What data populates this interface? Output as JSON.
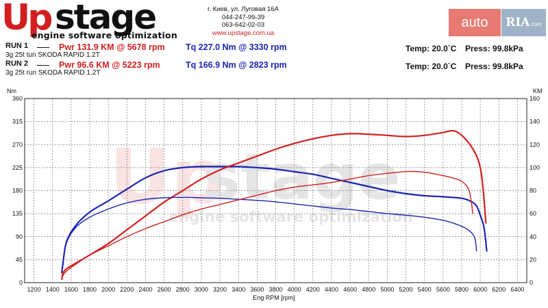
{
  "logo": {
    "brand_a": "Up",
    "brand_b": "stage",
    "tagline": "engine software optimization"
  },
  "contact": {
    "address": "г. Киев, ул. Луговая 16А",
    "phone1": "044-247-99-39",
    "phone2": "063-642-02-03",
    "website": "www.upstage.com.ua"
  },
  "watermark": {
    "auto": "auto",
    "ria": "RIA",
    "ria_suffix": ".com"
  },
  "runs": [
    {
      "label": "RUN 1",
      "car": "3g 25t tun SKODA RAPID 1.2T",
      "power": "Pwr 131.9 KM @ 5678 rpm",
      "torque": "Tq 227.0 Nm @ 3330 rpm",
      "temp": "Temp: 20.0`C",
      "press": "Press: 99.8kPa"
    },
    {
      "label": "RUN 2",
      "car": "3g 25t run SKODA RAPID 1.2T",
      "power": "Pwr 96.6 KM @ 5223 rpm",
      "torque": "Tq 166.9 Nm @ 2823 rpm",
      "temp": "Temp: 20.0`C",
      "press": "Press: 99.8kPa"
    }
  ],
  "chart_data": {
    "type": "line",
    "xlabel": "Eng RPM [rpm]",
    "ylabel_left": "Nm",
    "ylabel_right": "KM",
    "xlim": [
      1100,
      6500
    ],
    "ylim_left": [
      0,
      360
    ],
    "ylim_right": [
      0,
      160
    ],
    "x_ticks": [
      1200,
      1400,
      1600,
      1800,
      2000,
      2200,
      2400,
      2600,
      2800,
      3000,
      3200,
      3400,
      3600,
      3800,
      4000,
      4200,
      4400,
      4600,
      4800,
      5000,
      5200,
      5400,
      5600,
      5800,
      6000,
      6200,
      6400
    ],
    "y_ticks_left": [
      0,
      45,
      90,
      135,
      180,
      225,
      270,
      315,
      360
    ],
    "y_ticks_right": [
      0,
      20,
      40,
      60,
      80,
      100,
      120,
      140,
      160
    ],
    "grid": true,
    "colors": {
      "power": "#d11f1f",
      "torque": "#1a23b0"
    },
    "series": [
      {
        "name": "RUN 1",
        "metric": "torque",
        "axis": "left",
        "stroke": 2.2,
        "x": [
          1500,
          1510,
          1550,
          1650,
          1800,
          2000,
          2200,
          2400,
          2600,
          2800,
          3000,
          3200,
          3330,
          3400,
          3600,
          3800,
          4000,
          4200,
          4400,
          4600,
          4800,
          5000,
          5200,
          5400,
          5600,
          5800,
          5900,
          5960,
          6000,
          6040,
          6070
        ],
        "y": [
          20,
          35,
          80,
          112,
          138,
          160,
          183,
          205,
          219,
          225,
          227,
          227,
          227,
          227,
          225,
          222,
          217,
          212,
          204,
          196,
          188,
          180,
          174,
          170,
          168,
          165,
          159,
          150,
          132,
          108,
          62
        ]
      },
      {
        "name": "RUN 1",
        "metric": "power",
        "axis": "right",
        "stroke": 2.2,
        "x": [
          1500,
          1510,
          1550,
          1650,
          1800,
          2000,
          2200,
          2400,
          2600,
          2800,
          3000,
          3200,
          3400,
          3600,
          3800,
          4000,
          4200,
          4400,
          4600,
          4800,
          5000,
          5200,
          5400,
          5600,
          5678,
          5750,
          5850,
          5950,
          6000,
          6030,
          6060
        ],
        "y": [
          3,
          8,
          12,
          17,
          24,
          34,
          46,
          58,
          70,
          80,
          90,
          98,
          104,
          110,
          116,
          121,
          125,
          128,
          129.5,
          129,
          128,
          127,
          128,
          130.5,
          131.9,
          131,
          124,
          112,
          100,
          82,
          52
        ]
      },
      {
        "name": "RUN 2",
        "metric": "torque",
        "axis": "left",
        "stroke": 1.4,
        "x": [
          1500,
          1510,
          1550,
          1650,
          1800,
          2000,
          2200,
          2400,
          2600,
          2823,
          3000,
          3200,
          3400,
          3600,
          3800,
          4000,
          4200,
          4400,
          4600,
          4800,
          5000,
          5200,
          5400,
          5600,
          5700,
          5800,
          5880,
          5940,
          5960
        ],
        "y": [
          20,
          38,
          78,
          108,
          128,
          144,
          156,
          163,
          166,
          166.9,
          166,
          165,
          163,
          161,
          158,
          154,
          150,
          146,
          143,
          139,
          135,
          132,
          128,
          122,
          117,
          110,
          102,
          88,
          62
        ]
      },
      {
        "name": "RUN 2",
        "metric": "power",
        "axis": "right",
        "stroke": 1.4,
        "x": [
          1500,
          1510,
          1550,
          1650,
          1800,
          2000,
          2200,
          2400,
          2600,
          2800,
          3000,
          3200,
          3400,
          3600,
          3800,
          4000,
          4200,
          4400,
          4600,
          4800,
          5000,
          5223,
          5400,
          5600,
          5700,
          5800,
          5880,
          5920
        ],
        "y": [
          4,
          6,
          10,
          16,
          24,
          32,
          40,
          47,
          53,
          59,
          64,
          68,
          72,
          76,
          80,
          83,
          85,
          87,
          90,
          93,
          95,
          96.6,
          96,
          93,
          91,
          88,
          80,
          60
        ]
      }
    ]
  }
}
